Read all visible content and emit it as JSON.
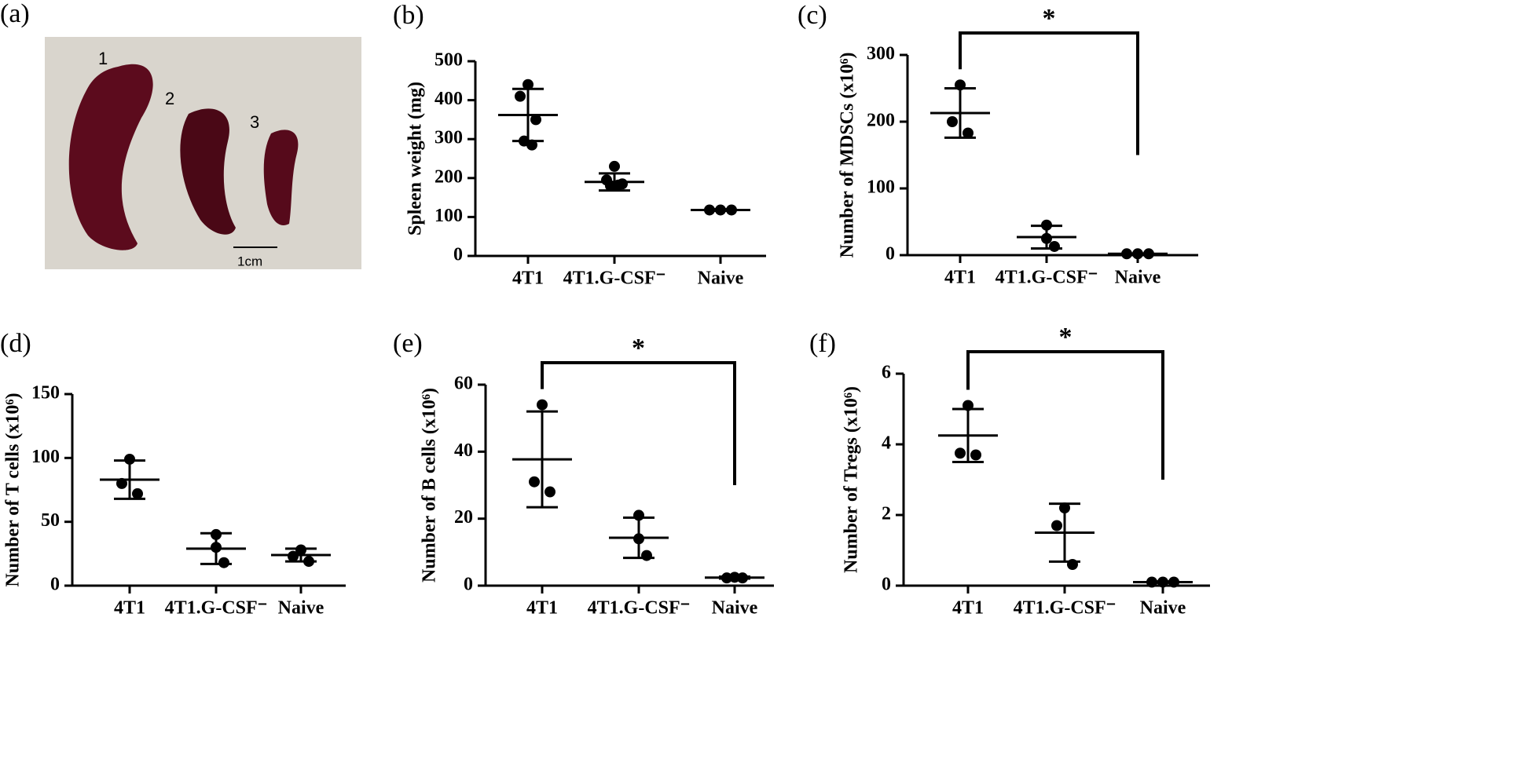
{
  "photo": {
    "panel": "(a)",
    "labels": [
      "1",
      "2",
      "3"
    ],
    "scale_bar": "1cm"
  },
  "chart_data": [
    {
      "type": "scatter",
      "panel": "(b)",
      "ylabel": "Spleen weight (mg)",
      "categories": [
        "4T1",
        "4T1.G-CSF⁻",
        "Naive"
      ],
      "points": [
        [
          440,
          410,
          350,
          295,
          285
        ],
        [
          230,
          195,
          185,
          180,
          182
        ],
        [
          118,
          118,
          118
        ]
      ],
      "means": [
        362,
        190,
        118
      ],
      "errors": [
        67,
        22,
        2
      ],
      "ylim": [
        0,
        500
      ],
      "yticks": [
        0,
        100,
        200,
        300,
        400,
        500
      ],
      "significance": []
    },
    {
      "type": "scatter",
      "panel": "(c)",
      "ylabel": "Number of MDSCs (x10⁶)",
      "categories": [
        "4T1",
        "4T1.G-CSF⁻",
        "Naive"
      ],
      "points": [
        [
          255,
          200,
          183
        ],
        [
          45,
          25,
          13
        ],
        [
          2,
          2,
          2
        ]
      ],
      "means": [
        213,
        27,
        2
      ],
      "errors": [
        37,
        17,
        0.5
      ],
      "ylim": [
        0,
        300
      ],
      "yticks": [
        0,
        100,
        200,
        300
      ],
      "significance": [
        {
          "label": "*",
          "groups": [
            0,
            2
          ]
        }
      ]
    },
    {
      "type": "scatter",
      "panel": "(d)",
      "ylabel": "Number of T cells (x10⁶)",
      "categories": [
        "4T1",
        "4T1.G-CSF⁻",
        "Naive"
      ],
      "points": [
        [
          99,
          80,
          72
        ],
        [
          40,
          30,
          18
        ],
        [
          28,
          23,
          19
        ]
      ],
      "means": [
        83,
        29,
        24
      ],
      "errors": [
        15,
        12,
        5
      ],
      "ylim": [
        0,
        150
      ],
      "yticks": [
        0,
        50,
        100,
        150
      ],
      "significance": []
    },
    {
      "type": "scatter",
      "panel": "(e)",
      "ylabel": "Number of B cells (x10⁶)",
      "categories": [
        "4T1",
        "4T1.G-CSF⁻",
        "Naive"
      ],
      "points": [
        [
          54,
          31,
          28
        ],
        [
          21,
          14,
          9
        ],
        [
          2.5,
          2.3,
          2.3
        ]
      ],
      "means": [
        37.7,
        14.3,
        2.4
      ],
      "errors": [
        14.3,
        6,
        0.3
      ],
      "ylim": [
        0,
        60
      ],
      "yticks": [
        0,
        20,
        40,
        60
      ],
      "significance": [
        {
          "label": "*",
          "groups": [
            0,
            2
          ]
        }
      ]
    },
    {
      "type": "scatter",
      "panel": "(f)",
      "ylabel": "Number of Tregs (x10⁶)",
      "categories": [
        "4T1",
        "4T1.G-CSF⁻",
        "Naive"
      ],
      "points": [
        [
          5.1,
          3.75,
          3.7
        ],
        [
          2.2,
          1.7,
          0.6
        ],
        [
          0.1,
          0.1,
          0.1
        ]
      ],
      "means": [
        4.25,
        1.5,
        0.1
      ],
      "errors": [
        0.75,
        0.82,
        0.02
      ],
      "ylim": [
        0,
        6
      ],
      "yticks": [
        0,
        2,
        4,
        6
      ],
      "significance": [
        {
          "label": "*",
          "groups": [
            0,
            2
          ]
        }
      ]
    }
  ]
}
